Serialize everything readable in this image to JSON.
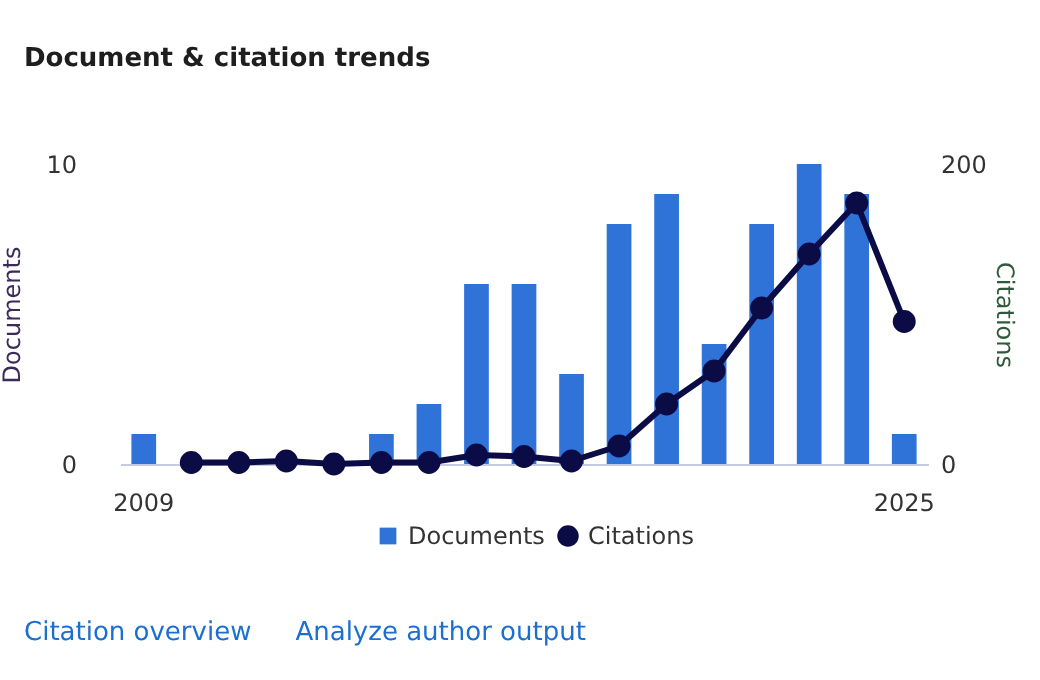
{
  "chart_data": {
    "type": "bar",
    "title": "Document & citation trends",
    "categories": [
      "2009",
      null,
      null,
      null,
      null,
      null,
      null,
      null,
      null,
      null,
      null,
      null,
      null,
      null,
      null,
      null,
      "2025"
    ],
    "series": [
      {
        "name": "Documents",
        "color": "#2f73d9",
        "values": [
          1,
          0,
          0,
          0,
          0,
          1,
          2,
          6,
          6,
          3,
          8,
          9,
          4,
          8,
          10,
          9,
          1
        ]
      },
      {
        "name": "Citations",
        "type": "line",
        "axis": "y2",
        "color": "#0b0b45",
        "values": [
          null,
          1,
          1,
          2,
          0,
          1,
          1,
          6,
          5,
          2,
          12,
          40,
          62,
          104,
          140,
          174,
          95
        ]
      }
    ],
    "ylabel": "Documents",
    "y2label": "Citations",
    "ylim": [
      0,
      10
    ],
    "yticks": [
      0,
      10
    ],
    "y2lim": [
      0,
      200
    ],
    "y2ticks": [
      0,
      200
    ],
    "marker": "circle",
    "legend": "bottom",
    "annotations": [
      "Citation overview",
      "Analyze author output"
    ]
  }
}
